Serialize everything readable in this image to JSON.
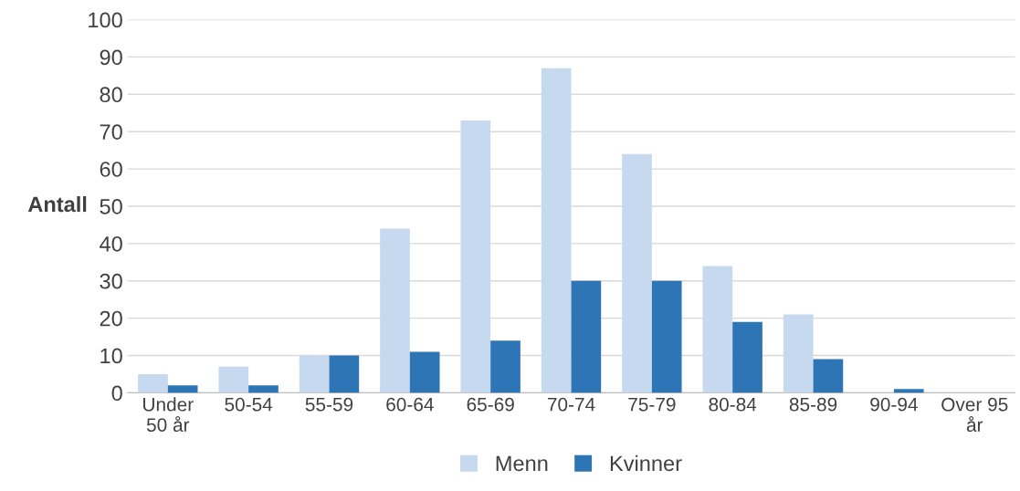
{
  "chart_data": {
    "type": "bar",
    "ylabel": "Antall",
    "categories": [
      "Under\n50 år",
      "50-54",
      "55-59",
      "60-64",
      "65-69",
      "70-74",
      "75-79",
      "80-84",
      "85-89",
      "90-94",
      "Over 95\når"
    ],
    "series": [
      {
        "name": "Menn",
        "color": "#c6d9ef",
        "values": [
          5,
          7,
          10,
          44,
          73,
          87,
          64,
          34,
          21,
          0,
          0
        ]
      },
      {
        "name": "Kvinner",
        "color": "#2e75b6",
        "values": [
          2,
          2,
          10,
          11,
          14,
          30,
          30,
          19,
          9,
          1,
          0
        ]
      }
    ],
    "ylim": [
      0,
      100
    ],
    "yticks": [
      0,
      10,
      20,
      30,
      40,
      50,
      60,
      70,
      80,
      90,
      100
    ],
    "grid": "y",
    "legend": "bottom"
  }
}
